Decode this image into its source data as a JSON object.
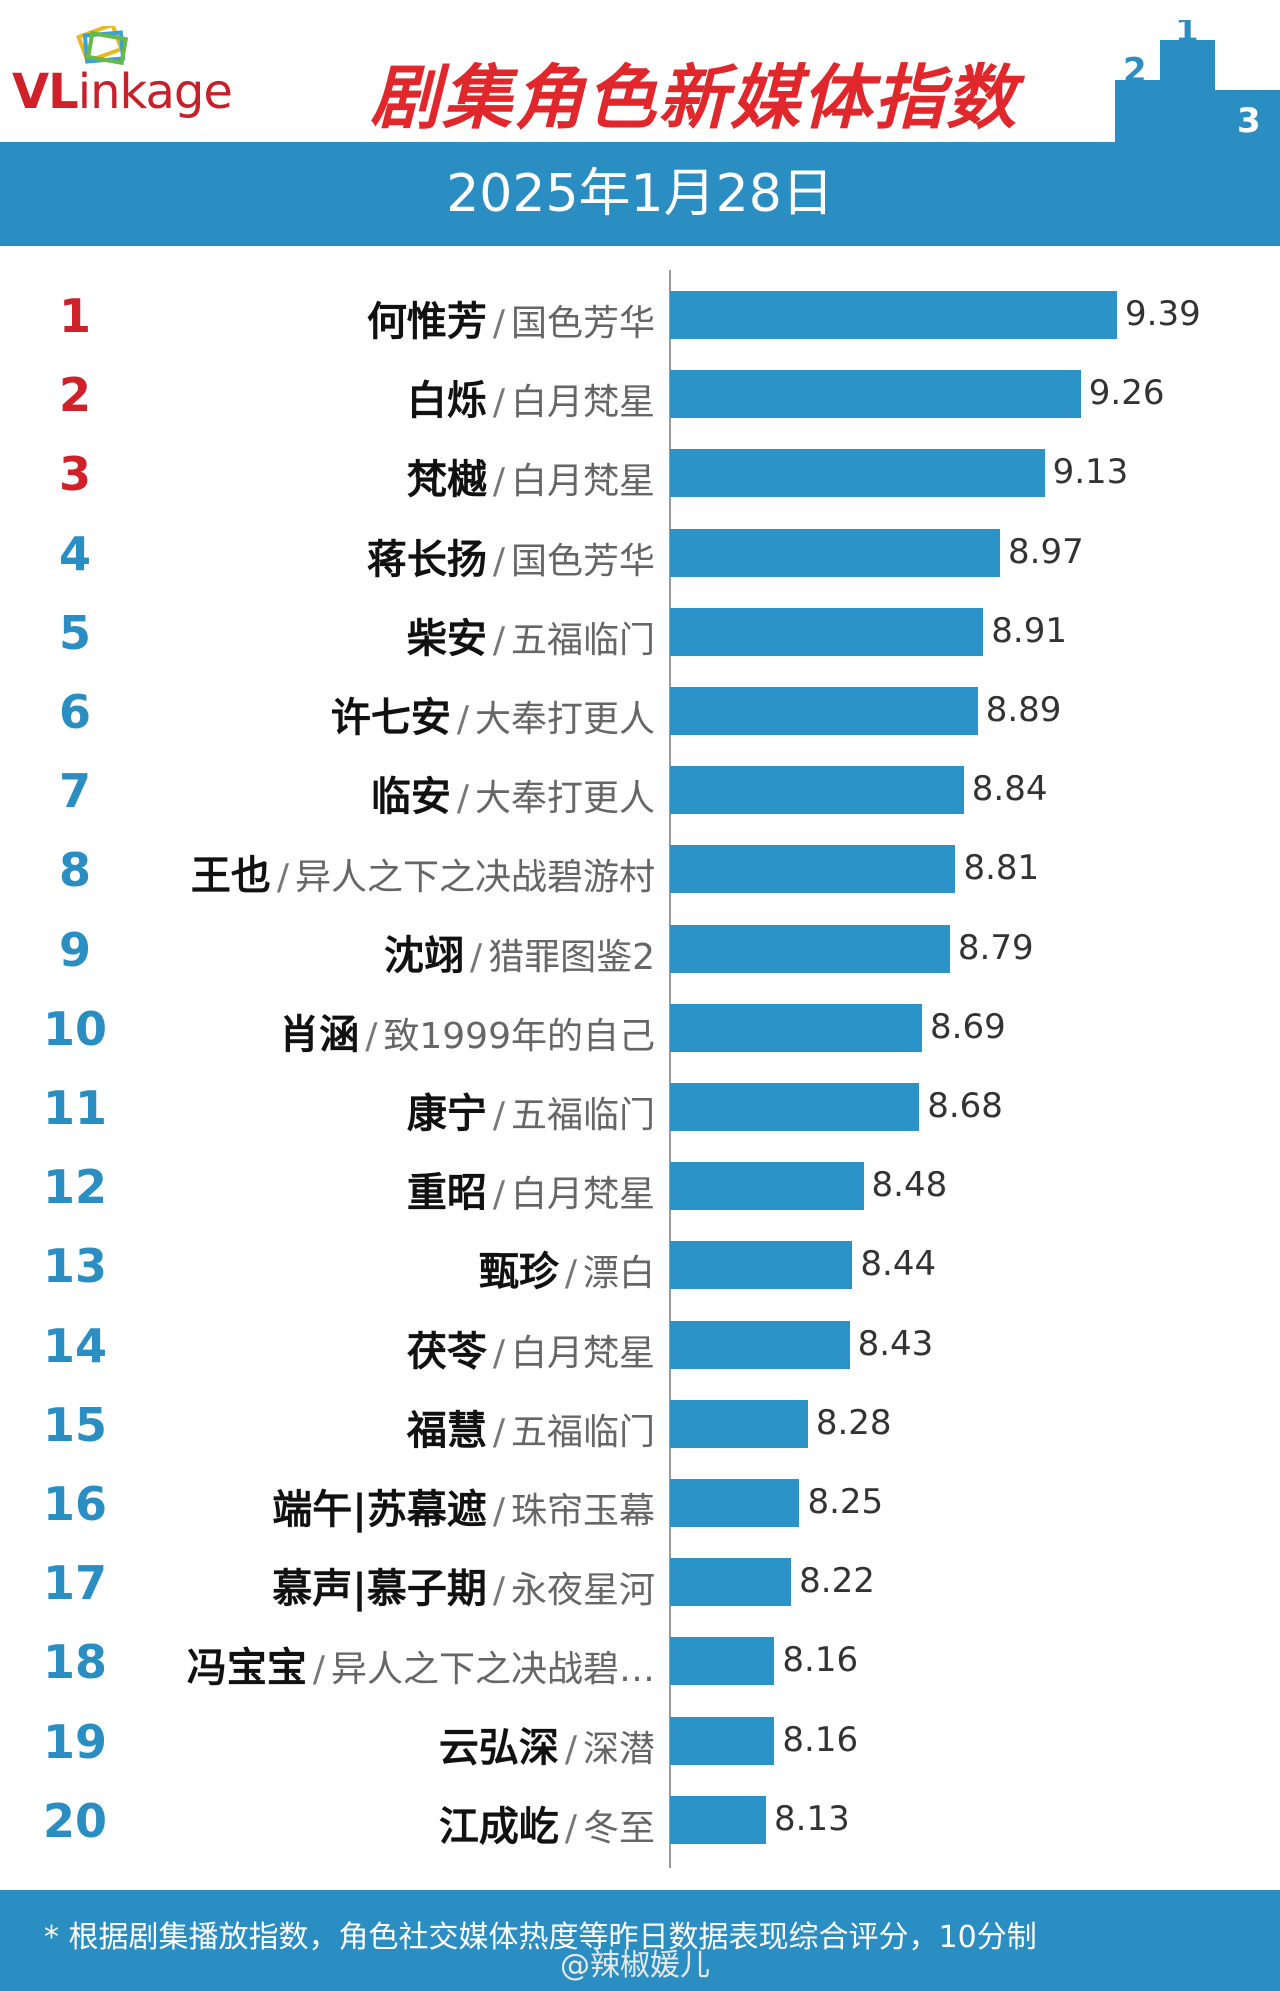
{
  "header": {
    "logo_text_v": "VL",
    "logo_text_rest": "inkage",
    "logo_full": "VLinkage",
    "title": "剧集角色新媒体指数",
    "podium_digits": [
      "2",
      "1",
      "3"
    ]
  },
  "date": "2025年1月28日",
  "colors": {
    "accent_blue": "#2b8ec2",
    "bar_blue": "#2b93c8",
    "top3_red": "#d0202a",
    "rank_blue": "#2b8ec2",
    "title_red": "#e0282c"
  },
  "chart_data": {
    "type": "bar",
    "orientation": "horizontal",
    "title": "剧集角色新媒体指数",
    "xlim": [
      0,
      10
    ],
    "grid": false,
    "rows": [
      {
        "rank": "1",
        "name": "何惟芳",
        "show": "国色芳华",
        "value": 9.39
      },
      {
        "rank": "2",
        "name": "白烁",
        "show": "白月梵星",
        "value": 9.26
      },
      {
        "rank": "3",
        "name": "梵樾",
        "show": "白月梵星",
        "value": 9.13
      },
      {
        "rank": "4",
        "name": "蒋长扬",
        "show": "国色芳华",
        "value": 8.97
      },
      {
        "rank": "5",
        "name": "柴安",
        "show": "五福临门",
        "value": 8.91
      },
      {
        "rank": "6",
        "name": "许七安",
        "show": "大奉打更人",
        "value": 8.89
      },
      {
        "rank": "7",
        "name": "临安",
        "show": "大奉打更人",
        "value": 8.84
      },
      {
        "rank": "8",
        "name": "王也",
        "show": "异人之下之决战碧游村",
        "value": 8.81
      },
      {
        "rank": "9",
        "name": "沈翊",
        "show": "猎罪图鉴2",
        "value": 8.79
      },
      {
        "rank": "10",
        "name": "肖涵",
        "show": "致1999年的自己",
        "value": 8.69
      },
      {
        "rank": "11",
        "name": "康宁",
        "show": "五福临门",
        "value": 8.68
      },
      {
        "rank": "12",
        "name": "重昭",
        "show": "白月梵星",
        "value": 8.48
      },
      {
        "rank": "13",
        "name": "甄珍",
        "show": "漂白",
        "value": 8.44
      },
      {
        "rank": "14",
        "name": "茯苓",
        "show": "白月梵星",
        "value": 8.43
      },
      {
        "rank": "15",
        "name": "福慧",
        "show": "五福临门",
        "value": 8.28
      },
      {
        "rank": "16",
        "name": "端午|苏幕遮",
        "show": "珠帘玉幕",
        "value": 8.25
      },
      {
        "rank": "17",
        "name": "慕声|慕子期",
        "show": "永夜星河",
        "value": 8.22
      },
      {
        "rank": "18",
        "name": "冯宝宝",
        "show": "异人之下之决战碧…",
        "value": 8.16
      },
      {
        "rank": "19",
        "name": "云弘深",
        "show": "深潜",
        "value": 8.16
      },
      {
        "rank": "20",
        "name": "江成屹",
        "show": "冬至",
        "value": 8.13
      }
    ]
  },
  "footer": {
    "note": "* 根据剧集播放指数，角色社交媒体热度等昨日数据表现综合评分，10分制",
    "watermark": "@辣椒媛儿"
  }
}
